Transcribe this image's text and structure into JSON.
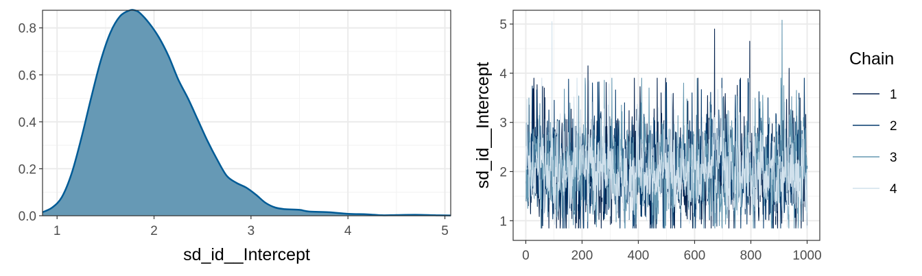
{
  "colors": {
    "density_fill": "#6699B5",
    "density_line": "#005B96",
    "chain_1": "#011F4B",
    "chain_2": "#03396C",
    "chain_3": "#6497B1",
    "chain_4": "#D1E1EC"
  },
  "chart_data": [
    {
      "type": "area",
      "xlabel": "sd_id__Intercept",
      "ylabel": "",
      "xlim": [
        0.85,
        5.06
      ],
      "ylim": [
        0,
        0.875
      ],
      "x_ticks": [
        1,
        2,
        3,
        4,
        5
      ],
      "y_ticks": [
        0.0,
        0.2,
        0.4,
        0.6,
        0.8
      ],
      "x_tick_labels": [
        "1",
        "2",
        "3",
        "4",
        "5"
      ],
      "y_tick_labels": [
        "0.0",
        "0.2",
        "0.4",
        "0.6",
        "0.8"
      ],
      "grid": true,
      "series": [
        {
          "x": [
            0.85,
            0.95,
            1.05,
            1.15,
            1.25,
            1.35,
            1.45,
            1.55,
            1.65,
            1.75,
            1.8,
            1.85,
            1.95,
            2.05,
            2.15,
            2.25,
            2.35,
            2.45,
            2.55,
            2.65,
            2.75,
            2.85,
            2.95,
            3.05,
            3.15,
            3.25,
            3.35,
            3.5,
            3.6,
            3.8,
            4.0,
            4.2,
            4.35,
            4.5,
            4.7,
            4.9,
            5.06
          ],
          "y": [
            0.015,
            0.035,
            0.08,
            0.18,
            0.33,
            0.5,
            0.66,
            0.78,
            0.85,
            0.875,
            0.875,
            0.865,
            0.82,
            0.76,
            0.68,
            0.58,
            0.5,
            0.41,
            0.32,
            0.24,
            0.17,
            0.14,
            0.12,
            0.09,
            0.055,
            0.035,
            0.028,
            0.025,
            0.018,
            0.015,
            0.008,
            0.006,
            0.002,
            0.003,
            0.004,
            0.002,
            0.001
          ]
        }
      ]
    },
    {
      "type": "line",
      "xlabel": "",
      "ylabel": "sd_id__Intercept",
      "xlim": [
        -45,
        1045
      ],
      "ylim": [
        0.6,
        5.28
      ],
      "x_ticks": [
        0,
        200,
        400,
        600,
        800,
        1000
      ],
      "y_ticks": [
        1,
        2,
        3,
        4,
        5
      ],
      "x_tick_labels": [
        "0",
        "200",
        "400",
        "600",
        "800",
        "1000"
      ],
      "y_tick_labels": [
        "1",
        "2",
        "3",
        "4",
        "5"
      ],
      "grid": true,
      "legend_title": "Chain",
      "legend_position": "right",
      "series": [
        {
          "name": "1",
          "n": 1000,
          "base": 1.95,
          "spread": 0.55,
          "seed": 11,
          "spikes": [
            [
              670,
              4.9
            ],
            [
              795,
              4.65
            ],
            [
              220,
              4.15
            ],
            [
              935,
              4.1
            ],
            [
              65,
              3.7
            ],
            [
              480,
              3.6
            ]
          ]
        },
        {
          "name": "2",
          "n": 1000,
          "base": 1.95,
          "spread": 0.5,
          "seed": 23,
          "spikes": [
            [
              100,
              3.45
            ],
            [
              350,
              3.4
            ],
            [
              590,
              3.6
            ],
            [
              860,
              3.5
            ]
          ]
        },
        {
          "name": "3",
          "n": 1000,
          "base": 1.95,
          "spread": 0.5,
          "seed": 37,
          "spikes": [
            [
              910,
              5.08
            ],
            [
              210,
              3.9
            ],
            [
              560,
              3.8
            ],
            [
              700,
              3.5
            ]
          ]
        },
        {
          "name": "4",
          "n": 1000,
          "base": 1.95,
          "spread": 0.4,
          "seed": 53,
          "spikes": [
            [
              92,
              5.05
            ],
            [
              400,
              3.3
            ],
            [
              760,
              3.2
            ]
          ]
        }
      ]
    }
  ]
}
